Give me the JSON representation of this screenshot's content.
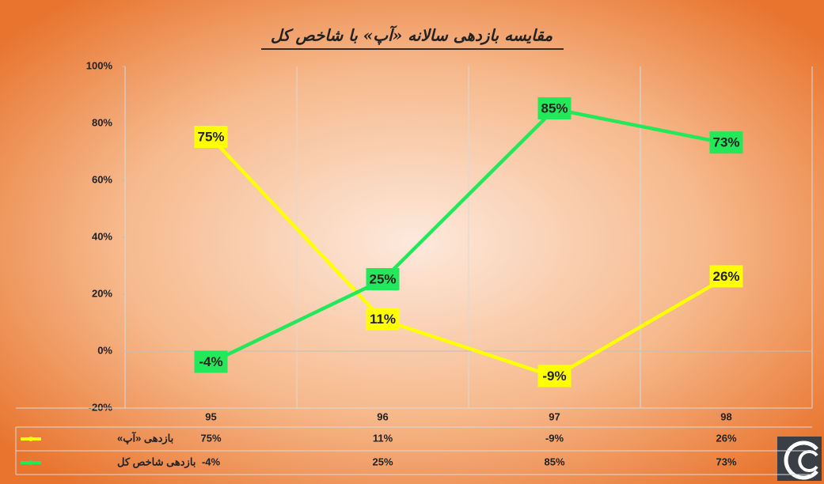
{
  "chart_data": {
    "type": "line",
    "title": "مقایسه بازدهی سالانه «آپ» با شاخص کل",
    "categories": [
      "95",
      "96",
      "97",
      "98"
    ],
    "series": [
      {
        "name": "بازدهی «آپ»",
        "color": "#ffff00",
        "values": [
          75,
          11,
          -9,
          26
        ],
        "value_labels": [
          "75%",
          "11%",
          "-9%",
          "26%"
        ]
      },
      {
        "name": "بازدهی شاخص کل",
        "color": "#22e85a",
        "values": [
          -4,
          25,
          85,
          73
        ],
        "value_labels": [
          "-4%",
          "25%",
          "85%",
          "73%"
        ]
      }
    ],
    "ylim": [
      -20,
      100
    ],
    "yticks": [
      {
        "value": -20,
        "label": "-20%"
      },
      {
        "value": 0,
        "label": "0%"
      },
      {
        "value": 20,
        "label": "20%"
      },
      {
        "value": 40,
        "label": "40%"
      },
      {
        "value": 60,
        "label": "60%"
      },
      {
        "value": 80,
        "label": "80%"
      },
      {
        "value": 100,
        "label": "100%"
      }
    ],
    "data_table": true
  }
}
